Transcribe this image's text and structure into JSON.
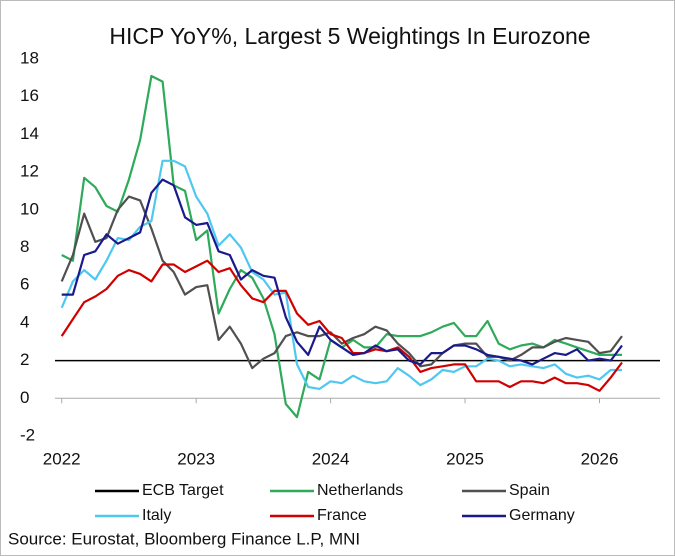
{
  "chart_data": {
    "type": "line",
    "title": "HICP YoY%, Largest 5 Weightings In Eurozone",
    "source": "Source: Eurostat, Bloomberg Finance L.P, MNI",
    "x": [
      2022,
      2022.083,
      2022.167,
      2022.25,
      2022.333,
      2022.417,
      2022.5,
      2022.583,
      2022.667,
      2022.75,
      2022.833,
      2022.917,
      2023,
      2023.083,
      2023.167,
      2023.25,
      2023.333,
      2023.417,
      2023.5,
      2023.583,
      2023.667,
      2023.75,
      2023.833,
      2023.917,
      2024,
      2024.083,
      2024.167,
      2024.25,
      2024.333,
      2024.417,
      2024.5,
      2024.583,
      2024.667,
      2024.75,
      2024.833,
      2024.917,
      2025,
      2025.083,
      2025.167,
      2025.25,
      2025.333,
      2025.417,
      2025.5,
      2025.583,
      2025.667,
      2025.75,
      2025.833,
      2025.917,
      2026,
      2026.083,
      2026.167
    ],
    "xlim": [
      2021.95,
      2026.45
    ],
    "xticks": [
      2022,
      2023,
      2024,
      2025,
      2026
    ],
    "ylim": [
      -2,
      18
    ],
    "yticks": [
      -2,
      0,
      2,
      4,
      6,
      8,
      10,
      12,
      14,
      16,
      18
    ],
    "reference_line": {
      "name": "ECB Target",
      "value": 2,
      "color": "#000000"
    },
    "series": [
      {
        "name": "Netherlands",
        "color": "#2eaa5a",
        "values": [
          7.6,
          7.3,
          11.7,
          11.2,
          10.2,
          9.9,
          11.6,
          13.7,
          17.1,
          16.8,
          11.3,
          11.0,
          8.4,
          8.9,
          4.5,
          5.8,
          6.8,
          6.4,
          5.3,
          3.4,
          -0.3,
          -1.0,
          1.4,
          1.0,
          3.1,
          2.7,
          3.1,
          2.7,
          2.7,
          3.4,
          3.3,
          3.3,
          3.3,
          3.5,
          3.8,
          4.0,
          3.3,
          3.3,
          4.1,
          2.9,
          2.6,
          2.8,
          2.9,
          2.7,
          3.1,
          2.9,
          2.7,
          2.5,
          2.3,
          2.3,
          2.3
        ]
      },
      {
        "name": "Spain",
        "color": "#505050",
        "values": [
          6.2,
          7.6,
          9.8,
          8.3,
          8.5,
          10.0,
          10.7,
          10.5,
          9.0,
          7.3,
          6.7,
          5.5,
          5.9,
          6.0,
          3.1,
          3.8,
          2.9,
          1.6,
          2.1,
          2.4,
          3.3,
          3.5,
          3.3,
          3.3,
          3.5,
          2.9,
          3.2,
          3.4,
          3.8,
          3.6,
          2.9,
          2.4,
          1.7,
          1.8,
          2.4,
          2.8,
          2.9,
          2.9,
          2.2,
          2.2,
          2.0,
          2.3,
          2.7,
          2.7,
          3.0,
          3.2,
          3.1,
          3.0,
          2.4,
          2.5,
          3.3
        ]
      },
      {
        "name": "Italy",
        "color": "#4fc8f0",
        "values": [
          4.8,
          6.2,
          6.8,
          6.3,
          7.3,
          8.5,
          8.4,
          9.1,
          9.4,
          12.6,
          12.6,
          12.3,
          10.7,
          9.8,
          8.1,
          8.7,
          8.0,
          6.7,
          6.3,
          5.5,
          5.6,
          1.8,
          0.6,
          0.5,
          0.9,
          0.8,
          1.2,
          0.9,
          0.8,
          0.9,
          1.6,
          1.2,
          0.7,
          1.0,
          1.5,
          1.4,
          1.7,
          1.7,
          2.1,
          2.0,
          1.7,
          1.8,
          1.7,
          1.6,
          1.8,
          1.3,
          1.1,
          1.2,
          1.0,
          1.5,
          1.5
        ]
      },
      {
        "name": "France",
        "color": "#d00000",
        "values": [
          3.3,
          4.2,
          5.1,
          5.4,
          5.8,
          6.5,
          6.8,
          6.6,
          6.2,
          7.1,
          7.1,
          6.7,
          7.0,
          7.3,
          6.7,
          6.9,
          6.0,
          5.3,
          5.1,
          5.7,
          5.7,
          4.5,
          3.9,
          4.1,
          3.4,
          3.2,
          2.4,
          2.4,
          2.6,
          2.5,
          2.7,
          2.2,
          1.4,
          1.6,
          1.7,
          1.8,
          1.8,
          0.9,
          0.9,
          0.9,
          0.6,
          0.9,
          0.9,
          0.8,
          1.1,
          0.8,
          0.8,
          0.7,
          0.4,
          1.1,
          1.9
        ]
      },
      {
        "name": "Germany",
        "color": "#1a1a8c",
        "values": [
          5.5,
          5.5,
          7.6,
          7.8,
          8.7,
          8.2,
          8.5,
          8.8,
          10.9,
          11.6,
          11.3,
          9.6,
          9.2,
          9.3,
          7.8,
          7.6,
          6.3,
          6.8,
          6.5,
          6.4,
          4.3,
          3.0,
          2.3,
          3.8,
          3.1,
          2.7,
          2.3,
          2.4,
          2.8,
          2.5,
          2.6,
          2.0,
          1.8,
          2.4,
          2.4,
          2.8,
          2.8,
          2.6,
          2.3,
          2.2,
          2.1,
          2.0,
          1.8,
          2.1,
          2.4,
          2.3,
          2.6,
          2.0,
          2.1,
          2.0,
          2.8
        ]
      }
    ]
  }
}
